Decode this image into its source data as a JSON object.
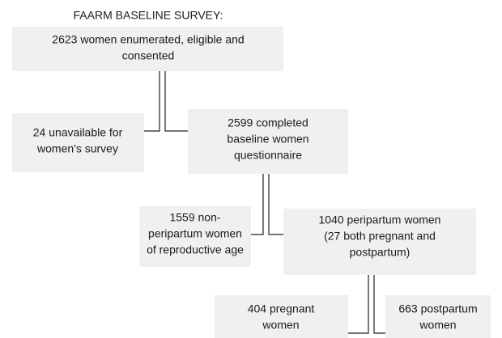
{
  "title": "FAARM BASELINE SURVEY:",
  "nodes": [
    {
      "lines": [
        "2623 women enumerated, eligible and",
        "consented"
      ]
    },
    {
      "lines": [
        "24 unavailable for",
        "women's survey"
      ]
    },
    {
      "lines": [
        "2599 completed",
        "baseline women",
        "questionnaire"
      ]
    },
    {
      "lines": [
        "1559 non-",
        "peripartum women",
        "of reproductive age"
      ]
    },
    {
      "lines": [
        "1040 peripartum women",
        "(27 both pregnant and",
        "postpartum)"
      ]
    },
    {
      "lines": [
        "404 pregnant",
        "women"
      ]
    },
    {
      "lines": [
        "663 postpartum",
        "women"
      ]
    }
  ]
}
